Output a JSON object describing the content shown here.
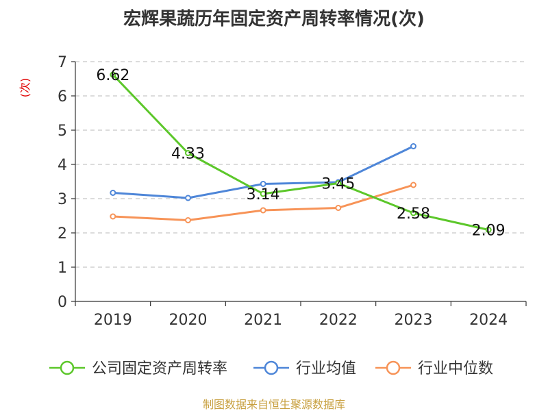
{
  "chart_data": {
    "type": "line",
    "title": "宏辉果蔬历年固定资产周转率情况(次)",
    "ylabel": "(次)",
    "xlabel": "",
    "categories": [
      "2019",
      "2020",
      "2021",
      "2022",
      "2023",
      "2024"
    ],
    "ylim": [
      0,
      7
    ],
    "yticks": [
      0,
      1,
      2,
      3,
      4,
      5,
      6,
      7
    ],
    "grid": true,
    "legend_position": "bottom",
    "series": [
      {
        "name": "公司固定资产周转率",
        "color": "#5cc72a",
        "values": [
          6.62,
          4.33,
          3.14,
          3.45,
          2.58,
          2.09
        ],
        "labels": [
          "6.62",
          "4.33",
          "3.14",
          "3.45",
          "2.58",
          "2.09"
        ]
      },
      {
        "name": "行业均值",
        "color": "#4e86d8",
        "values": [
          3.17,
          3.02,
          3.43,
          3.48,
          4.53,
          null
        ]
      },
      {
        "name": "行业中位数",
        "color": "#f79357",
        "values": [
          2.48,
          2.37,
          2.66,
          2.73,
          3.4,
          null
        ]
      }
    ],
    "source": "制图数据来自恒生聚源数据库"
  }
}
